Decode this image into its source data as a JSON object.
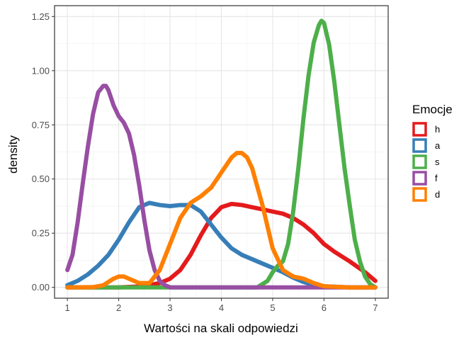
{
  "chart_data": {
    "type": "line",
    "title": "",
    "xlabel": "Wartości na skali odpowiedzi",
    "ylabel": "density",
    "xlim": [
      0.75,
      7.25
    ],
    "ylim": [
      -0.05,
      1.3
    ],
    "x_ticks": [
      1,
      2,
      3,
      4,
      5,
      6,
      7
    ],
    "x_tick_labels": [
      "1",
      "2",
      "3",
      "4",
      "5",
      "6",
      "7"
    ],
    "y_ticks": [
      0,
      0.25,
      0.5,
      0.75,
      1.0,
      1.25
    ],
    "y_tick_labels": [
      "0.00",
      "0.25",
      "0.50",
      "0.75",
      "1.00",
      "1.25"
    ],
    "grid": true,
    "legend": {
      "title": "Emocje",
      "placement": "right"
    },
    "series": [
      {
        "name": "h",
        "color": "#E41A1C",
        "x": [
          1,
          1.5,
          2,
          2.5,
          2.8,
          3,
          3.2,
          3.4,
          3.6,
          3.8,
          4,
          4.2,
          4.4,
          4.6,
          4.8,
          5,
          5.2,
          5.4,
          5.6,
          5.8,
          6,
          6.2,
          6.5,
          6.8,
          7
        ],
        "y": [
          0,
          0,
          0,
          0.005,
          0.02,
          0.04,
          0.08,
          0.15,
          0.24,
          0.32,
          0.37,
          0.385,
          0.38,
          0.37,
          0.36,
          0.35,
          0.34,
          0.32,
          0.29,
          0.25,
          0.2,
          0.165,
          0.12,
          0.07,
          0.03
        ]
      },
      {
        "name": "a",
        "color": "#377EB8",
        "x": [
          1,
          1.2,
          1.4,
          1.6,
          1.8,
          2,
          2.2,
          2.4,
          2.6,
          2.8,
          3,
          3.2,
          3.4,
          3.6,
          3.8,
          4,
          4.2,
          4.4,
          4.6,
          4.8,
          5,
          5.2,
          5.4,
          5.6,
          5.8,
          6,
          6.5,
          7
        ],
        "y": [
          0.01,
          0.03,
          0.06,
          0.1,
          0.15,
          0.22,
          0.3,
          0.37,
          0.39,
          0.38,
          0.375,
          0.38,
          0.38,
          0.35,
          0.29,
          0.23,
          0.18,
          0.15,
          0.13,
          0.11,
          0.09,
          0.07,
          0.045,
          0.025,
          0.01,
          0.005,
          0,
          0
        ]
      },
      {
        "name": "s",
        "color": "#4DAF4A",
        "x": [
          1,
          2,
          3,
          4,
          4.7,
          4.9,
          5,
          5.1,
          5.2,
          5.3,
          5.4,
          5.5,
          5.6,
          5.7,
          5.8,
          5.9,
          5.95,
          6,
          6.1,
          6.2,
          6.3,
          6.4,
          6.5,
          6.6,
          6.7,
          6.8,
          6.9,
          7
        ],
        "y": [
          0,
          0,
          0,
          0,
          0,
          0.03,
          0.07,
          0.1,
          0.12,
          0.2,
          0.35,
          0.55,
          0.78,
          0.98,
          1.13,
          1.21,
          1.23,
          1.22,
          1.12,
          0.95,
          0.75,
          0.55,
          0.38,
          0.22,
          0.12,
          0.05,
          0.015,
          0
        ]
      },
      {
        "name": "f",
        "color": "#984EA3",
        "x": [
          1,
          1.1,
          1.2,
          1.3,
          1.4,
          1.5,
          1.6,
          1.7,
          1.75,
          1.8,
          1.9,
          2,
          2.1,
          2.2,
          2.3,
          2.4,
          2.5,
          2.6,
          2.7,
          2.8,
          2.9,
          3,
          3.5,
          4,
          5,
          6,
          7
        ],
        "y": [
          0.08,
          0.15,
          0.3,
          0.48,
          0.65,
          0.8,
          0.9,
          0.93,
          0.93,
          0.91,
          0.84,
          0.79,
          0.76,
          0.71,
          0.61,
          0.47,
          0.31,
          0.17,
          0.08,
          0.03,
          0.01,
          0,
          0,
          0,
          0,
          0,
          0
        ]
      },
      {
        "name": "d",
        "color": "#FF7F00",
        "x": [
          1,
          1.5,
          1.7,
          1.9,
          2,
          2.1,
          2.2,
          2.4,
          2.6,
          2.8,
          3,
          3.2,
          3.4,
          3.6,
          3.8,
          4,
          4.2,
          4.3,
          4.4,
          4.5,
          4.6,
          4.8,
          5,
          5.2,
          5.4,
          5.6,
          5.8,
          6,
          6.5,
          7
        ],
        "y": [
          0,
          0.001,
          0.01,
          0.04,
          0.05,
          0.05,
          0.04,
          0.02,
          0.02,
          0.08,
          0.2,
          0.32,
          0.39,
          0.42,
          0.46,
          0.53,
          0.6,
          0.62,
          0.62,
          0.6,
          0.55,
          0.38,
          0.18,
          0.08,
          0.05,
          0.04,
          0.02,
          0.005,
          0,
          0
        ]
      }
    ]
  }
}
